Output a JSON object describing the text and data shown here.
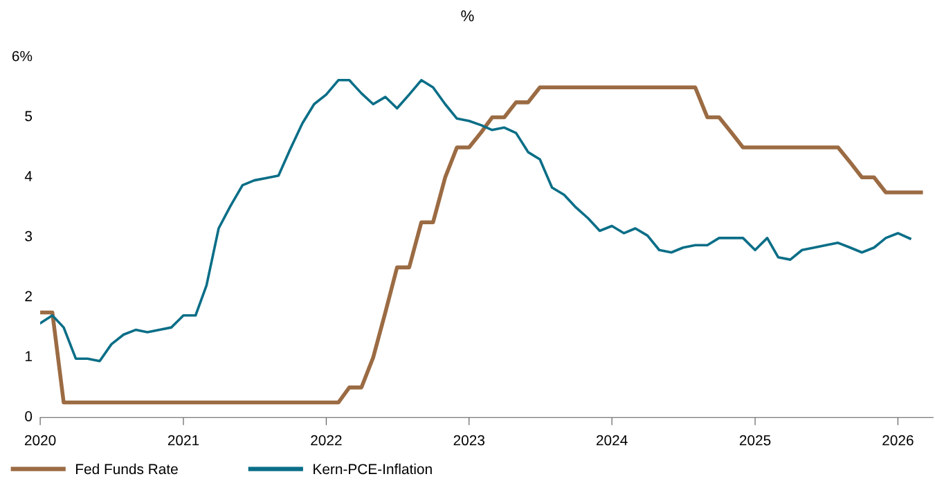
{
  "chart_data": {
    "type": "line",
    "title": "%",
    "xlim": [
      "2020-01-01",
      "2026-04-01"
    ],
    "xticks": [
      {
        "value": "2020",
        "label": "2020"
      },
      {
        "value": "2021",
        "label": "2021"
      },
      {
        "value": "2022",
        "label": "2022"
      },
      {
        "value": "2023",
        "label": "2023"
      },
      {
        "value": "2024",
        "label": "2024"
      },
      {
        "value": "2025",
        "label": "2025"
      },
      {
        "value": "2026",
        "label": "2026"
      }
    ],
    "ylim": [
      0,
      6
    ],
    "yticks": [
      0,
      1,
      2,
      3,
      4,
      5,
      {
        "value": 6,
        "label": "6%"
      }
    ],
    "grid": false,
    "legend": "bottom left",
    "marker": "none",
    "line_style": "solid",
    "series": [
      {
        "name": "Fed Funds Rate",
        "color": "#9b6b43",
        "x": [
          "2020-01",
          "2020-02",
          "2020-03",
          "2022-02",
          "2022-03",
          "2022-04",
          "2022-05",
          "2022-06",
          "2022-07",
          "2022-08",
          "2022-09",
          "2022-10",
          "2022-11",
          "2022-12",
          "2023-01",
          "2023-02",
          "2023-03",
          "2023-04",
          "2023-05",
          "2023-06",
          "2023-07",
          "2024-08",
          "2024-09",
          "2024-10",
          "2024-11",
          "2024-12",
          "2025-08",
          "2025-09",
          "2025-10",
          "2025-11",
          "2025-12",
          "2026-03"
        ],
        "values": [
          1.75,
          1.75,
          0.25,
          0.25,
          0.5,
          0.5,
          1.0,
          1.75,
          2.5,
          2.5,
          3.25,
          3.25,
          4.0,
          4.5,
          4.5,
          4.75,
          5.0,
          5.0,
          5.25,
          5.25,
          5.5,
          5.5,
          5.0,
          5.0,
          4.75,
          4.5,
          4.5,
          4.25,
          4.0,
          4.0,
          3.75,
          3.75
        ]
      },
      {
        "name": "Kern-PCE-Inflation",
        "color": "#0a6e87",
        "x": [
          "2020-01",
          "2020-02",
          "2020-03",
          "2020-04",
          "2020-05",
          "2020-06",
          "2020-07",
          "2020-08",
          "2020-09",
          "2020-10",
          "2020-11",
          "2020-12",
          "2021-01",
          "2021-02",
          "2021-03",
          "2021-04",
          "2021-05",
          "2021-06",
          "2021-07",
          "2021-08",
          "2021-09",
          "2021-10",
          "2021-11",
          "2021-12",
          "2022-01",
          "2022-02",
          "2022-03",
          "2022-04",
          "2022-05",
          "2022-06",
          "2022-07",
          "2022-08",
          "2022-09",
          "2022-10",
          "2022-11",
          "2022-12",
          "2023-01",
          "2023-02",
          "2023-03",
          "2023-04",
          "2023-05",
          "2023-06",
          "2023-07",
          "2023-08",
          "2023-09",
          "2023-10",
          "2023-11",
          "2023-12",
          "2024-01",
          "2024-02",
          "2024-03",
          "2024-04",
          "2024-05",
          "2024-06",
          "2024-07",
          "2024-08",
          "2024-09",
          "2024-10",
          "2024-11",
          "2024-12",
          "2025-01",
          "2025-02",
          "2025-03",
          "2025-04",
          "2025-05",
          "2025-06",
          "2025-07",
          "2025-08",
          "2025-09",
          "2025-10",
          "2025-11",
          "2025-12",
          "2026-01",
          "2026-02"
        ],
        "values": [
          1.57,
          1.7,
          1.5,
          0.98,
          0.98,
          0.94,
          1.22,
          1.38,
          1.46,
          1.42,
          1.46,
          1.5,
          1.7,
          1.7,
          2.2,
          3.15,
          3.52,
          3.87,
          3.95,
          3.99,
          4.03,
          4.47,
          4.9,
          5.22,
          5.38,
          5.62,
          5.62,
          5.4,
          5.22,
          5.34,
          5.15,
          5.38,
          5.62,
          5.5,
          5.22,
          4.98,
          4.94,
          4.87,
          4.79,
          4.83,
          4.74,
          4.42,
          4.3,
          3.83,
          3.71,
          3.5,
          3.32,
          3.11,
          3.19,
          3.07,
          3.15,
          3.03,
          2.79,
          2.75,
          2.83,
          2.87,
          2.87,
          2.99,
          2.99,
          2.99,
          2.79,
          2.99,
          2.67,
          2.63,
          2.79,
          2.83,
          2.87,
          2.91,
          2.83,
          2.75,
          2.83,
          2.99,
          3.07,
          2.98
        ]
      }
    ]
  }
}
